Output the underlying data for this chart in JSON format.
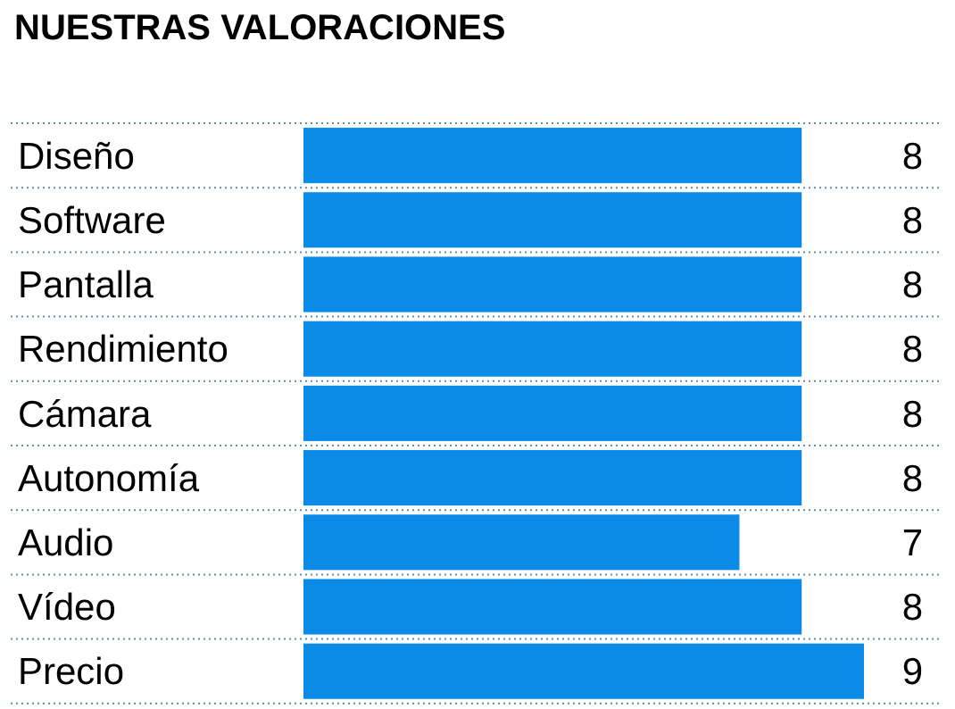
{
  "chart_data": {
    "type": "bar",
    "orientation": "horizontal",
    "title": "NUESTRAS VALORACIONES",
    "categories": [
      "Diseño",
      "Software",
      "Pantalla",
      "Rendimiento",
      "Cámara",
      "Autonomía",
      "Audio",
      "Vídeo",
      "Precio"
    ],
    "values": [
      8,
      8,
      8,
      8,
      8,
      8,
      7,
      8,
      9
    ],
    "color": "#0a8be8",
    "data_labels": true,
    "grid": "y"
  }
}
